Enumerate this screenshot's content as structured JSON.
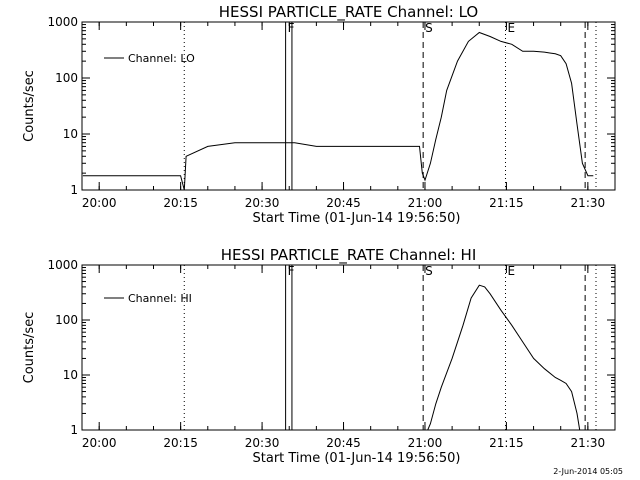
{
  "chart_data": [
    {
      "type": "line",
      "title": "HESSI PARTICLE_RATE Channel: LO",
      "xlabel": "Start Time (01-Jun-14 19:56:50)",
      "ylabel": "Counts/sec",
      "yscale": "log",
      "xlim": [
        "19:56:50",
        "21:35:00"
      ],
      "ylim": [
        1,
        1000
      ],
      "x_ticks": [
        "20:00",
        "20:15",
        "20:30",
        "20:45",
        "21:00",
        "21:15",
        "21:30"
      ],
      "y_ticks": [
        "1",
        "10",
        "100",
        "1000"
      ],
      "legend": {
        "position": "top-left",
        "entries": [
          "Channel: LO"
        ]
      },
      "markers": [
        {
          "label": "",
          "time": "20:15:40",
          "style": "dotted"
        },
        {
          "label": "F",
          "time": "20:34:20",
          "style": "solid"
        },
        {
          "label": "",
          "time": "20:35:30",
          "style": "solid"
        },
        {
          "label": "S",
          "time": "20:59:40",
          "style": "dashed"
        },
        {
          "label": "E",
          "time": "21:14:50",
          "style": "dotted"
        },
        {
          "label": "",
          "time": "21:29:30",
          "style": "dashed"
        },
        {
          "label": "",
          "time": "21:31:30",
          "style": "dotted"
        }
      ],
      "series": [
        {
          "x": [
            "19:57:00",
            "20:15:00",
            "20:15:40",
            "20:16:00",
            "20:20:00",
            "20:25:00",
            "20:30:00",
            "20:34:00",
            "20:36:00",
            "20:40:00",
            "20:45:00",
            "20:50:00",
            "20:55:00",
            "20:59:00",
            "20:59:30",
            "21:00:00",
            "21:01:00",
            "21:02:00",
            "21:03:00",
            "21:04:00",
            "21:06:00",
            "21:08:00",
            "21:10:00",
            "21:12:00",
            "21:14:00",
            "21:16:00",
            "21:18:00",
            "21:20:00",
            "21:22:00",
            "21:23:00",
            "21:24:00",
            "21:25:00",
            "21:26:00",
            "21:27:00",
            "21:28:00",
            "21:29:00",
            "21:30:00",
            "21:31:00"
          ],
          "y": [
            1.8,
            1.8,
            1,
            4,
            6,
            7,
            7,
            7,
            7,
            6,
            6,
            6,
            6,
            6,
            2,
            1.5,
            3,
            8,
            20,
            60,
            200,
            450,
            650,
            550,
            450,
            400,
            300,
            300,
            290,
            280,
            270,
            250,
            180,
            80,
            15,
            3,
            1.8,
            1.8
          ]
        }
      ]
    },
    {
      "type": "line",
      "title": "HESSI PARTICLE_RATE Channel: HI",
      "xlabel": "Start Time (01-Jun-14 19:56:50)",
      "ylabel": "Counts/sec",
      "yscale": "log",
      "xlim": [
        "19:56:50",
        "21:35:00"
      ],
      "ylim": [
        1,
        1000
      ],
      "x_ticks": [
        "20:00",
        "20:15",
        "20:30",
        "20:45",
        "21:00",
        "21:15",
        "21:30"
      ],
      "y_ticks": [
        "1",
        "10",
        "100",
        "1000"
      ],
      "legend": {
        "position": "top-left",
        "entries": [
          "Channel: HI"
        ]
      },
      "markers": [
        {
          "label": "",
          "time": "20:15:40",
          "style": "dotted"
        },
        {
          "label": "F",
          "time": "20:34:20",
          "style": "solid"
        },
        {
          "label": "",
          "time": "20:35:30",
          "style": "solid"
        },
        {
          "label": "S",
          "time": "20:59:40",
          "style": "dashed"
        },
        {
          "label": "E",
          "time": "21:14:50",
          "style": "dotted"
        },
        {
          "label": "",
          "time": "21:29:30",
          "style": "dashed"
        },
        {
          "label": "",
          "time": "21:31:30",
          "style": "dotted"
        }
      ],
      "series": [
        {
          "x": [
            "21:00:30",
            "21:01:00",
            "21:02:00",
            "21:03:00",
            "21:05:00",
            "21:07:00",
            "21:08:30",
            "21:10:00",
            "21:11:00",
            "21:12:00",
            "21:14:00",
            "21:16:00",
            "21:18:00",
            "21:20:00",
            "21:22:00",
            "21:24:00",
            "21:25:00",
            "21:26:00",
            "21:27:00",
            "21:28:00",
            "21:28:30"
          ],
          "y": [
            1,
            1.3,
            3,
            6,
            20,
            80,
            250,
            430,
            400,
            300,
            150,
            80,
            40,
            20,
            13,
            9,
            8,
            7,
            5,
            2,
            1
          ]
        }
      ]
    }
  ],
  "footer": {
    "date_stamp": "2-Jun-2014 05:05"
  }
}
